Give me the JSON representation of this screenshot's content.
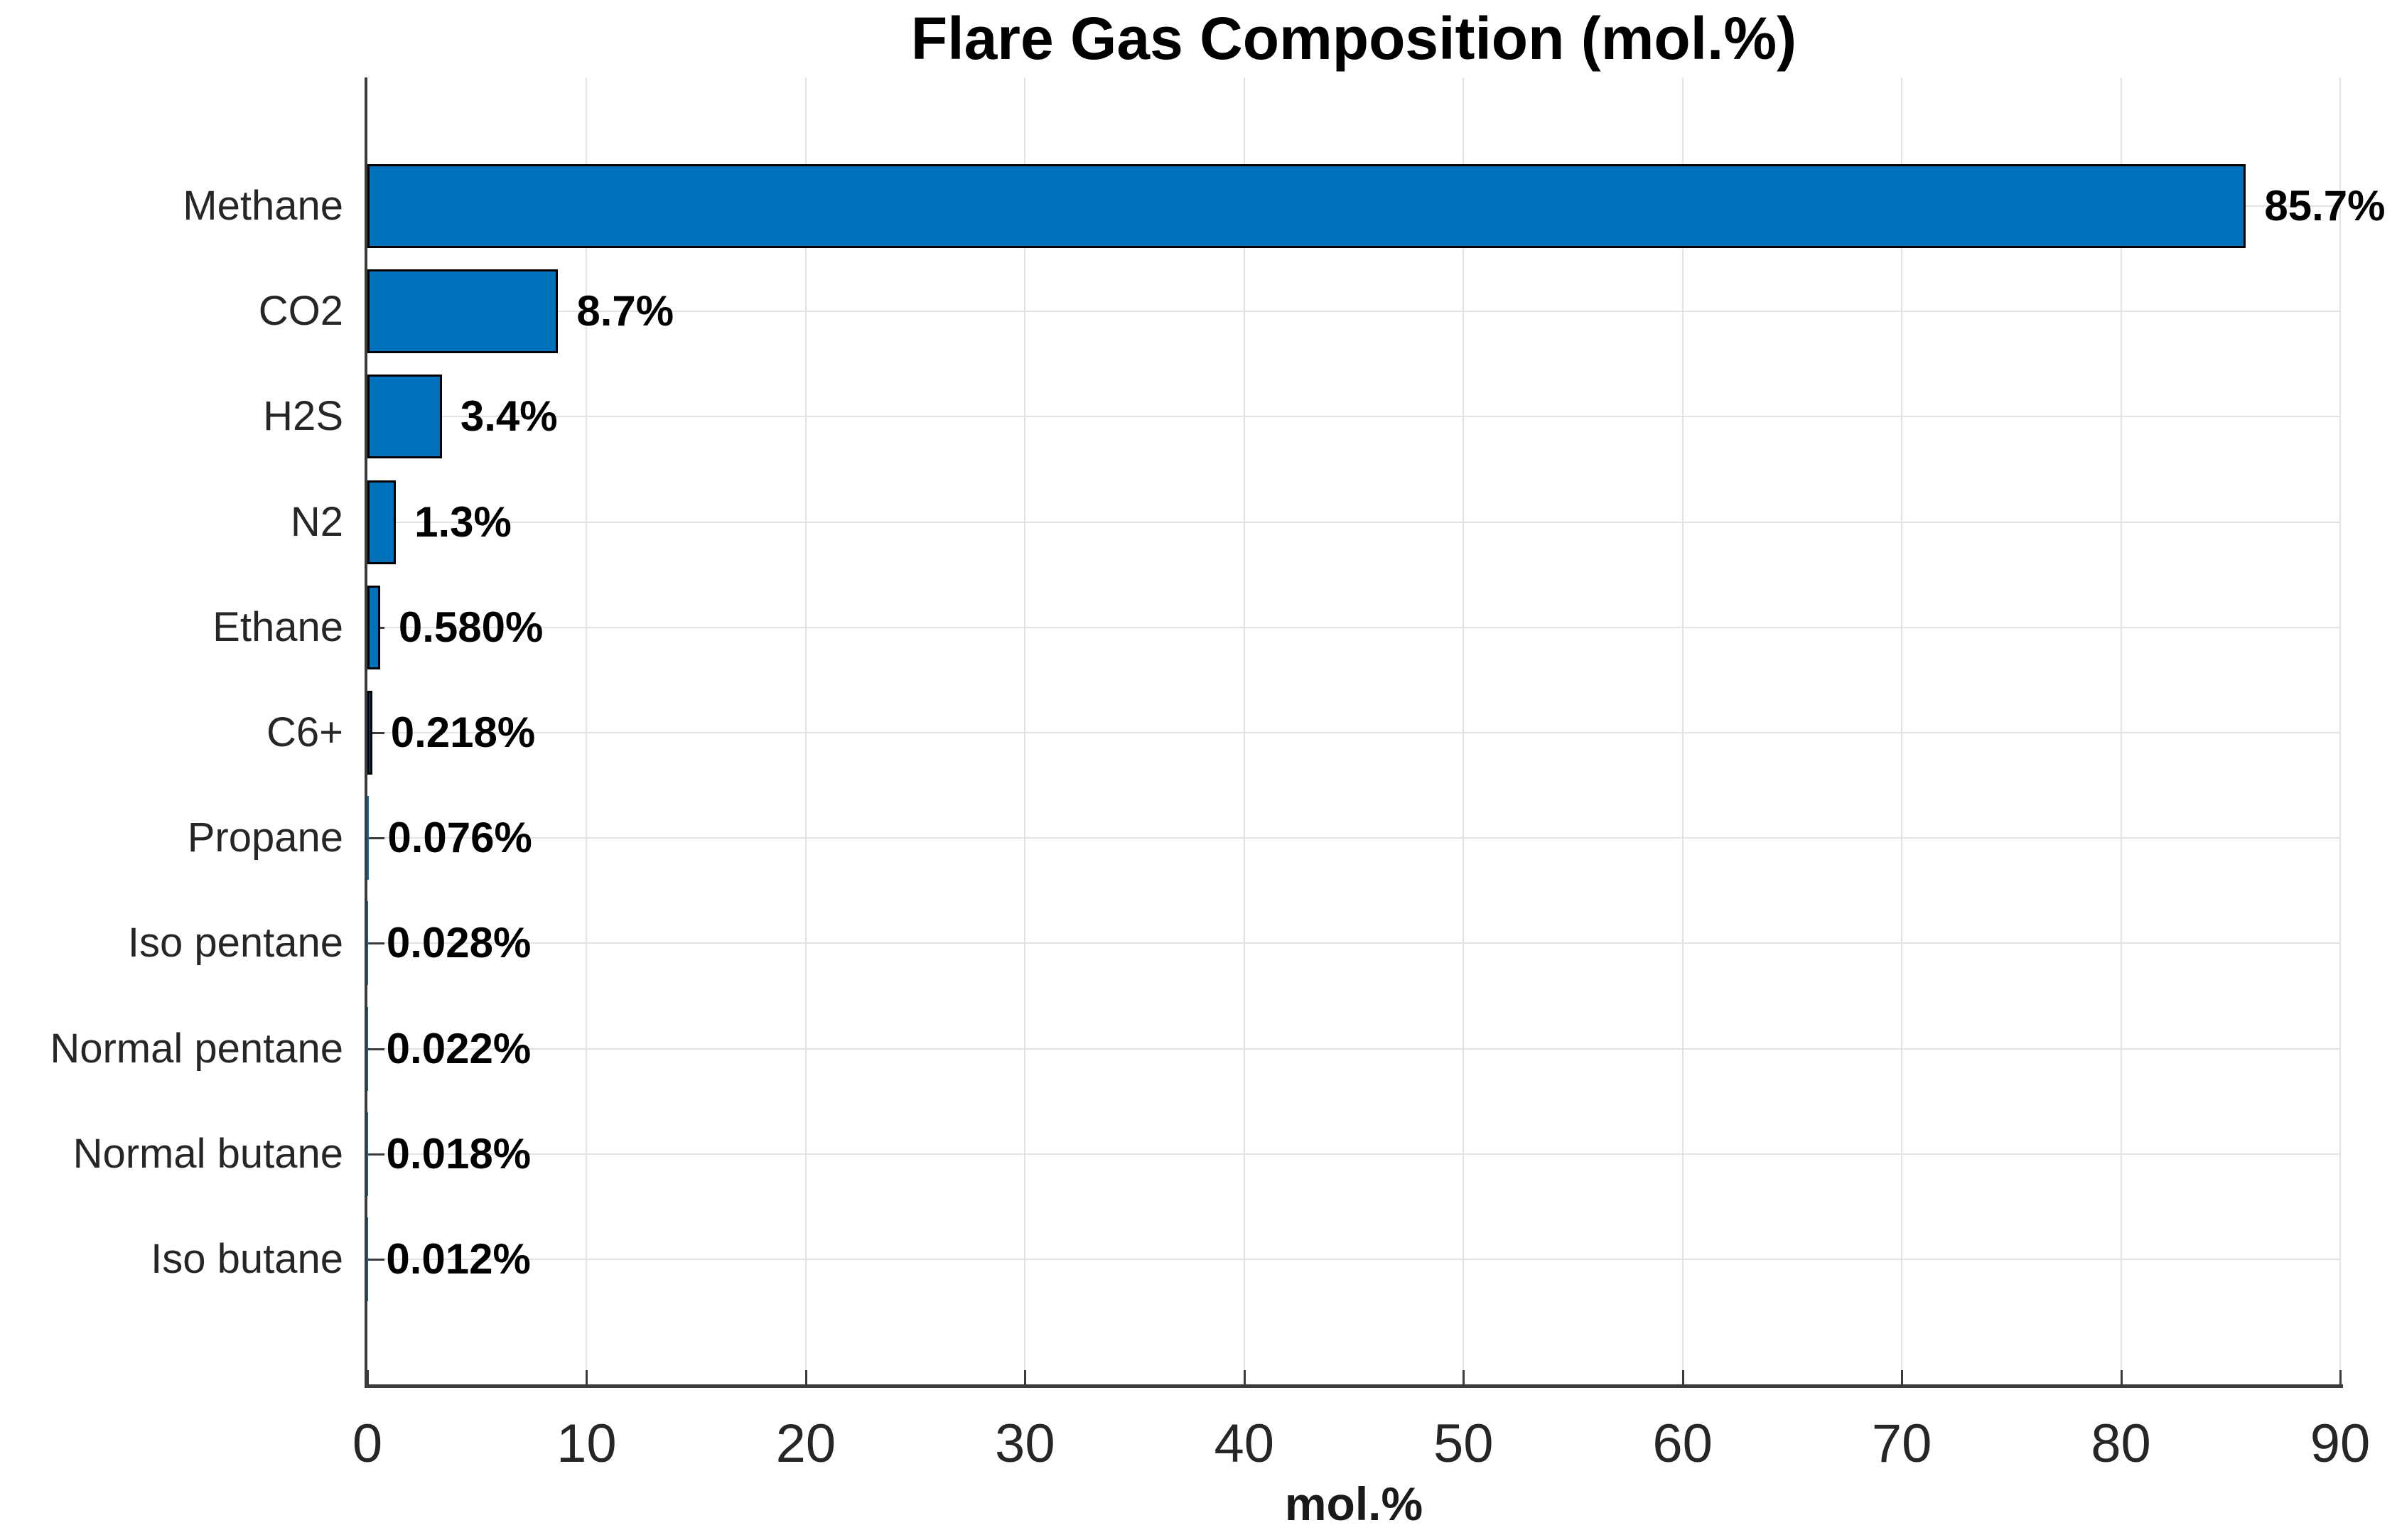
{
  "chart_data": {
    "type": "bar",
    "orientation": "horizontal",
    "title": "Flare Gas Composition (mol.%)",
    "xlabel": "mol.%",
    "ylabel": "",
    "categories": [
      "Methane",
      "CO2",
      "H2S",
      "N2",
      "Ethane",
      "C6+",
      "Propane",
      "Iso pentane",
      "Normal pentane",
      "Normal butane",
      "Iso butane"
    ],
    "values": [
      85.7,
      8.7,
      3.4,
      1.3,
      0.58,
      0.218,
      0.076,
      0.028,
      0.022,
      0.018,
      0.012
    ],
    "value_labels": [
      "85.7%",
      "8.7%",
      "3.4%",
      "1.3%",
      "0.580%",
      "0.218%",
      "0.076%",
      "0.028%",
      "0.022%",
      "0.018%",
      "0.012%"
    ],
    "x_ticks": [
      0,
      10,
      20,
      30,
      40,
      50,
      60,
      70,
      80,
      90
    ],
    "xlim": [
      0,
      90
    ],
    "grid": true,
    "legend_position": "none",
    "colors": {
      "bar_fill": "#0072BD",
      "bar_edge": "#000000",
      "axis": "#3b3b3b",
      "grid": "#e3e3e3",
      "tick_text": "#262626",
      "value_text": "#000000",
      "title_text": "#000000"
    }
  }
}
